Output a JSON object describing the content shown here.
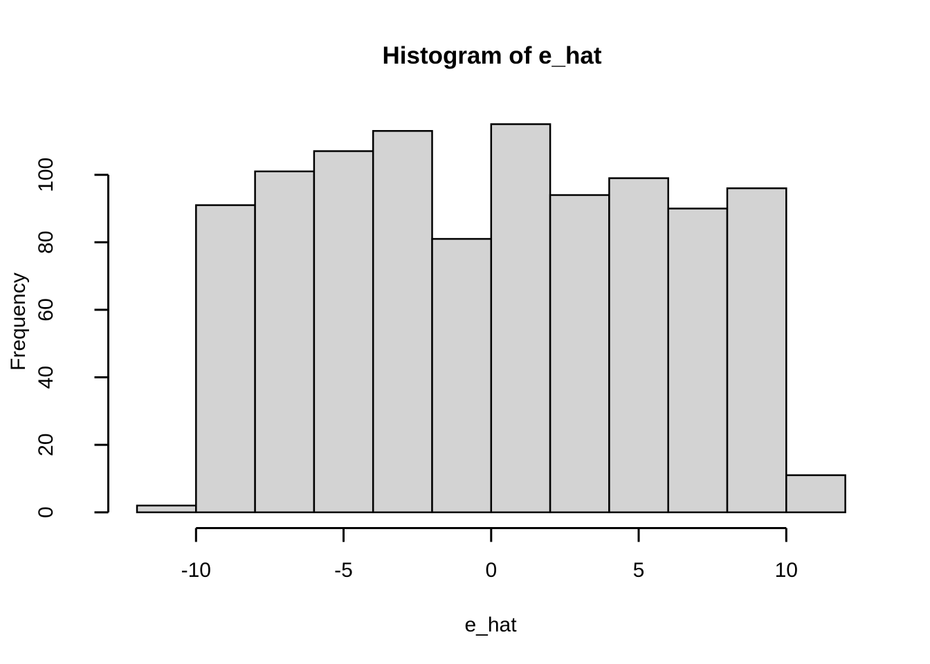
{
  "window": {
    "background_color": "#ffffff"
  },
  "chart_data": {
    "type": "bar",
    "subtype": "histogram",
    "title": "Histogram of e_hat",
    "xlabel": "e_hat",
    "ylabel": "Frequency",
    "bin_edges": [
      -12,
      -10,
      -8,
      -6,
      -4,
      -2,
      0,
      2,
      4,
      6,
      8,
      10,
      12
    ],
    "counts": [
      2,
      91,
      101,
      107,
      113,
      81,
      115,
      94,
      99,
      90,
      96,
      11
    ],
    "total_count": 1000,
    "x_ticks": [
      -10,
      -5,
      0,
      5,
      10
    ],
    "x_tick_labels": [
      "-10",
      "-5",
      "0",
      "5",
      "10"
    ],
    "y_ticks": [
      0,
      20,
      40,
      60,
      80,
      100
    ],
    "y_tick_labels": [
      "0",
      "20",
      "40",
      "60",
      "80",
      "100"
    ],
    "xlim": [
      -12,
      12
    ],
    "ylim": [
      0,
      115
    ],
    "grid": "off",
    "legend": "none",
    "bar_fill": "#d3d3d3",
    "bar_stroke": "#000000",
    "axis_color": "#000000",
    "text_color": "#000000",
    "background": "#ffffff"
  }
}
